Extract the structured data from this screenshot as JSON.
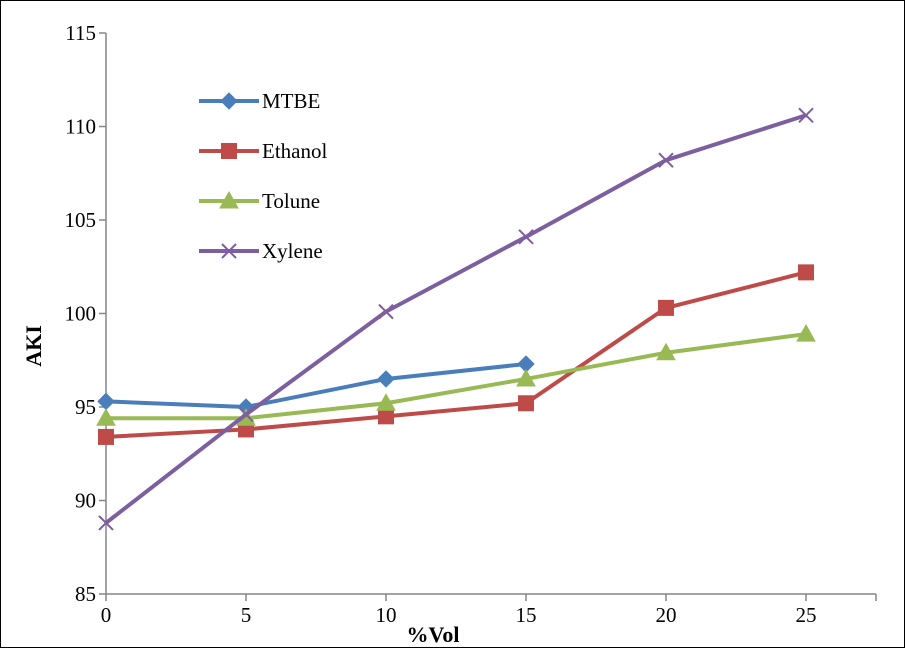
{
  "chart_data": {
    "type": "line",
    "title": "",
    "xlabel": "%Vol",
    "ylabel": "AKI",
    "x": [
      0,
      5,
      10,
      15,
      20,
      25
    ],
    "xlim": [
      0,
      27.5
    ],
    "ylim": [
      85,
      115
    ],
    "x_ticks": [
      "0",
      "5",
      "10",
      "15",
      "20",
      "25"
    ],
    "y_ticks": [
      "85",
      "90",
      "95",
      "100",
      "105",
      "110",
      "115"
    ],
    "grid": false,
    "legend_position": "top-left",
    "series": [
      {
        "name": "MTBE",
        "color": "#4A7EBB",
        "marker": "diamond",
        "values": [
          95.3,
          95.0,
          96.5,
          97.3,
          null,
          null
        ]
      },
      {
        "name": "Ethanol",
        "color": "#BE4B48",
        "marker": "square",
        "values": [
          93.4,
          93.8,
          94.5,
          95.2,
          100.3,
          102.2
        ]
      },
      {
        "name": "Tolune",
        "color": "#98B954",
        "marker": "triangle",
        "values": [
          94.4,
          94.4,
          95.2,
          96.5,
          97.9,
          98.9
        ]
      },
      {
        "name": "Xylene",
        "color": "#7D5FA0",
        "marker": "x",
        "values": [
          88.8,
          94.6,
          100.1,
          104.1,
          108.2,
          110.6
        ]
      }
    ]
  }
}
